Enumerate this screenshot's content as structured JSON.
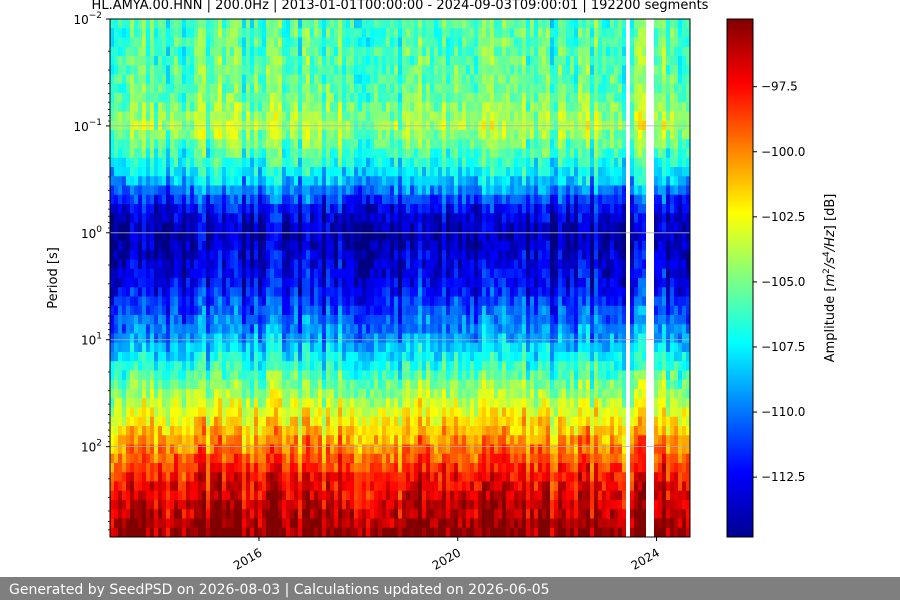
{
  "chart_data": {
    "type": "heatmap",
    "title": "HL.AMYA.00.HNN | 200.0Hz | 2013-01-01T00:00:00 - 2024-09-03T09:00:01 | 192200 segments",
    "xlabel": "",
    "ylabel": "Period [s]",
    "x_range": [
      "2013-01-01",
      "2024-09-03"
    ],
    "x_ticks": [
      "2016",
      "2020",
      "2024"
    ],
    "y_scale": "log",
    "y_inverted": true,
    "y_range_s": [
      0.01,
      700
    ],
    "y_ticks": [
      {
        "value": 0.01,
        "base": "10",
        "exp": "−2"
      },
      {
        "value": 0.1,
        "base": "10",
        "exp": "−1"
      },
      {
        "value": 1,
        "base": "10",
        "exp": "0"
      },
      {
        "value": 10,
        "base": "10",
        "exp": "1"
      },
      {
        "value": 100,
        "base": "10",
        "exp": "2"
      }
    ],
    "grid": true,
    "colormap": "jet",
    "colorbar": {
      "label_parts": [
        "Amplitude [",
        "m",
        "2",
        "/",
        "s",
        "4",
        "/",
        "Hz",
        "] [dB]"
      ],
      "range_db": [
        -114.8,
        -94.9
      ],
      "ticks": [
        -97.5,
        -100.0,
        -102.5,
        -105.0,
        -107.5,
        -110.0,
        -112.5
      ],
      "tick_labels": [
        "−97.5",
        "−100.0",
        "−102.5",
        "−105.0",
        "−107.5",
        "−110.0",
        "−112.5"
      ]
    },
    "amplitude_profile_db": [
      {
        "period_s": 0.01,
        "db": -106
      },
      {
        "period_s": 0.05,
        "db": -105.5
      },
      {
        "period_s": 0.1,
        "db": -104
      },
      {
        "period_s": 0.3,
        "db": -108
      },
      {
        "period_s": 0.6,
        "db": -112.5
      },
      {
        "period_s": 1,
        "db": -114
      },
      {
        "period_s": 3,
        "db": -112.5
      },
      {
        "period_s": 10,
        "db": -109
      },
      {
        "period_s": 30,
        "db": -104.5
      },
      {
        "period_s": 100,
        "db": -100
      },
      {
        "period_s": 200,
        "db": -97.5
      },
      {
        "period_s": 700,
        "db": -95
      }
    ],
    "data_gaps": [
      "2023-06",
      "2023-11",
      "2023-12"
    ]
  },
  "footer": {
    "text": "Generated by SeedPSD on 2026-08-03 | Calculations updated on 2026-06-05"
  }
}
